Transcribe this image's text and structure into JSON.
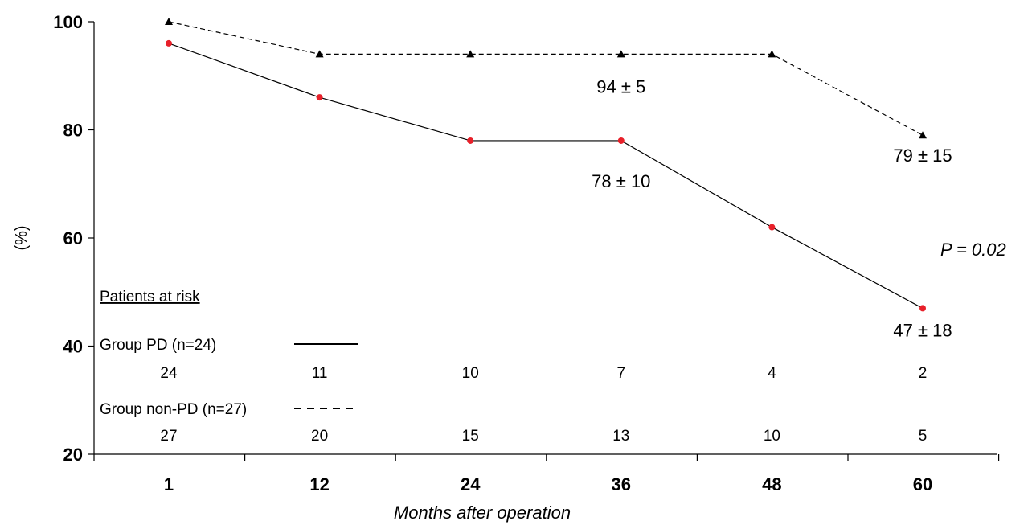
{
  "chart_data": {
    "type": "line",
    "xlabel": "Months after operation",
    "ylabel": "(%)",
    "categories": [
      "1",
      "12",
      "24",
      "36",
      "48",
      "60"
    ],
    "ylim": [
      20,
      100
    ],
    "yticks": [
      "20",
      "40",
      "60",
      "80",
      "100"
    ],
    "grid": false,
    "series": [
      {
        "name": "Group PD (n=24)",
        "values": [
          96,
          86,
          78,
          78,
          62,
          47
        ],
        "line_style": "solid",
        "marker": "circle",
        "marker_color": "#e8202a"
      },
      {
        "name": "Group non-PD (n=27)",
        "values": [
          100,
          94,
          94,
          94,
          94,
          79
        ],
        "line_style": "dashed",
        "marker": "triangle",
        "marker_color": "#000000"
      }
    ],
    "annotations": [
      {
        "text": "94 ± 5",
        "series": 1,
        "index": 3
      },
      {
        "text": "79 ± 15",
        "series": 1,
        "index": 5
      },
      {
        "text": "78 ± 10",
        "series": 0,
        "index": 3
      },
      {
        "text": "47 ± 18",
        "series": 0,
        "index": 5
      }
    ],
    "p_value": "P = 0.02",
    "patients_at_risk": {
      "title": "Patients at risk",
      "groups": [
        {
          "label": "Group PD (n=24)",
          "line_style": "solid",
          "counts": [
            "24",
            "11",
            "10",
            "7",
            "4",
            "2"
          ]
        },
        {
          "label": "Group non-PD (n=27)",
          "line_style": "dashed",
          "counts": [
            "27",
            "20",
            "15",
            "13",
            "10",
            "5"
          ]
        }
      ]
    }
  }
}
